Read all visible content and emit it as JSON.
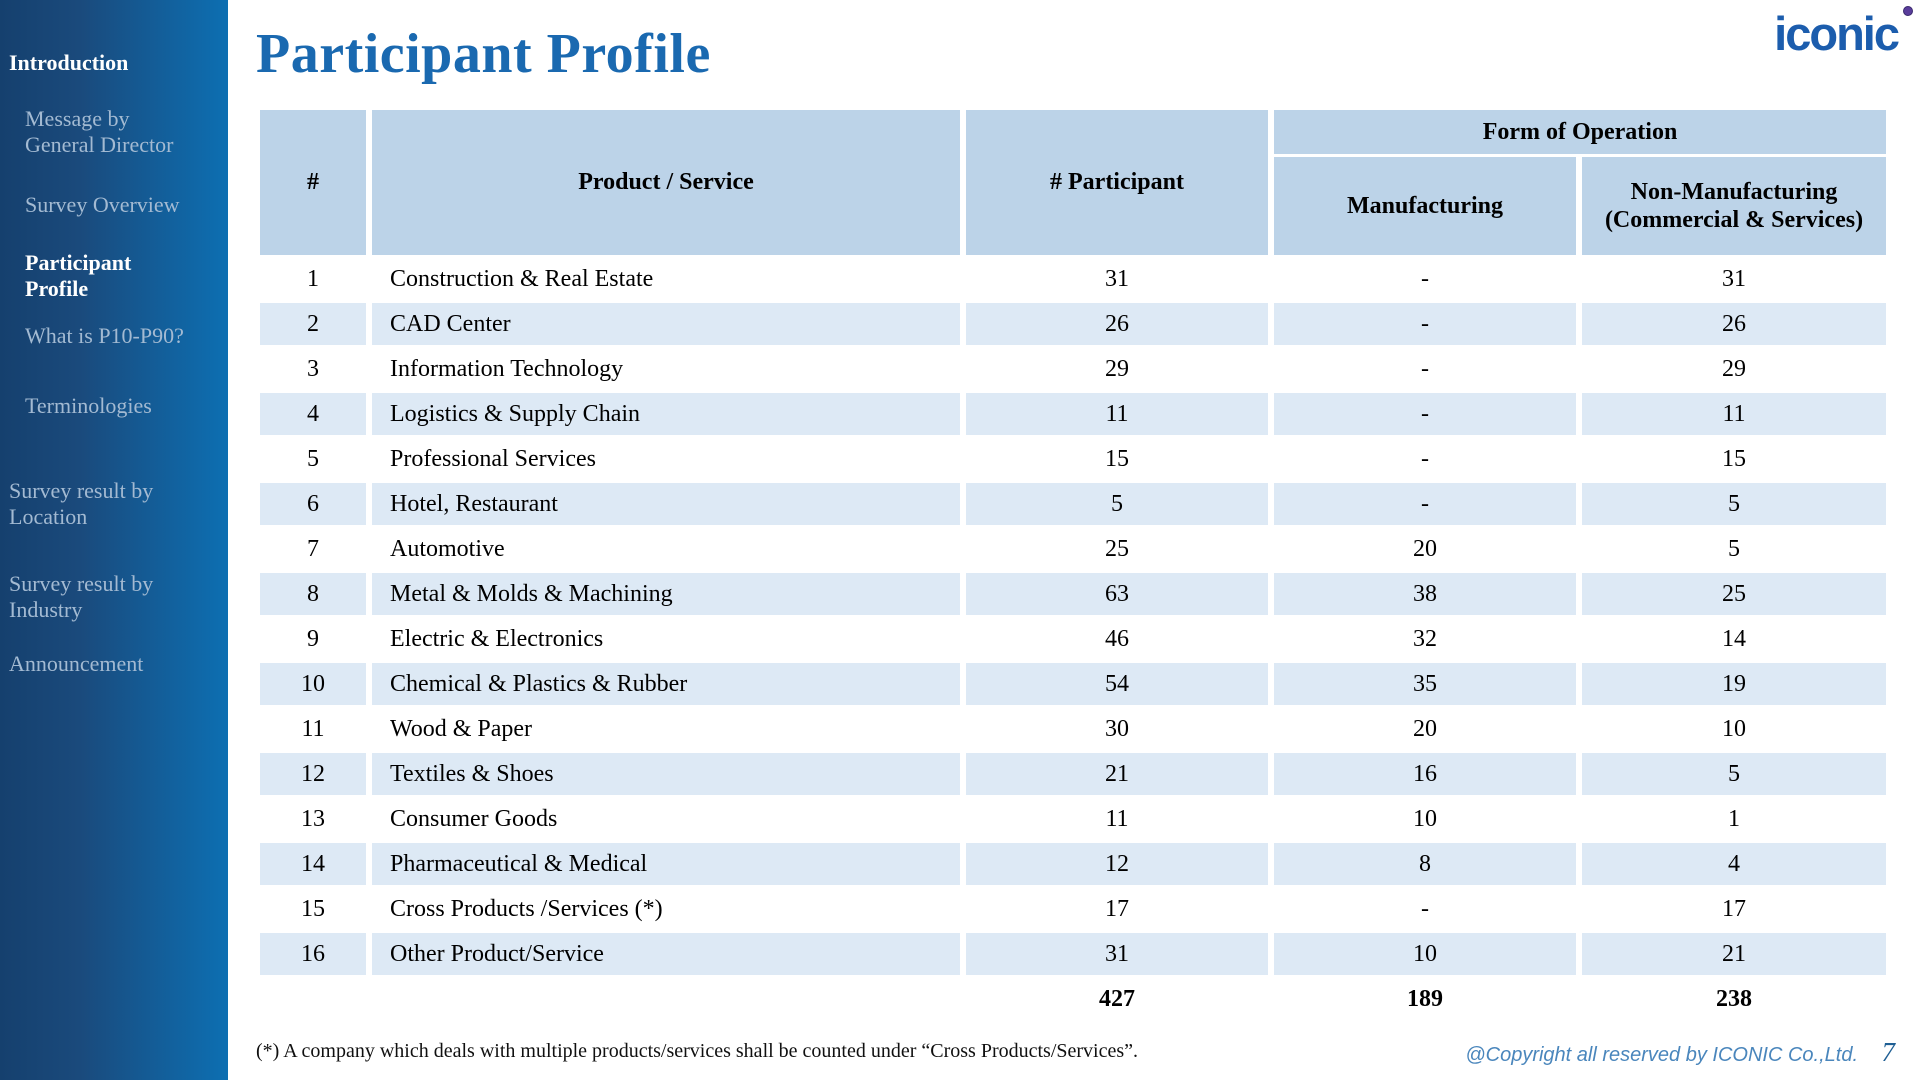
{
  "sidebar": {
    "items": [
      {
        "label": "Introduction",
        "level": 0,
        "active": true
      },
      {
        "label": "Message by General Director",
        "level": 1,
        "active": false
      },
      {
        "label": "Survey Overview",
        "level": 1,
        "active": false
      },
      {
        "label": "Participant Profile",
        "level": 1,
        "active": true
      },
      {
        "label": "What is P10-P90?",
        "level": 1,
        "active": false
      },
      {
        "label": "Terminologies",
        "level": 1,
        "active": false
      },
      {
        "label": "Survey result by Location",
        "level": 0,
        "active": false
      },
      {
        "label": "Survey result by Industry",
        "level": 0,
        "active": false
      },
      {
        "label": "Announcement",
        "level": 0,
        "active": false
      }
    ]
  },
  "header": {
    "title": "Participant Profile",
    "logo_text": "iconic",
    "logo_color": "#1c5dad",
    "logo_dot_color": "#5a3d9b",
    "title_color": "#1a69b0"
  },
  "table": {
    "columns": {
      "no": "#",
      "product_service": "Product / Service",
      "participants": "# Participant",
      "form_of_operation": "Form of Operation",
      "manufacturing": "Manufacturing",
      "non_manufacturing": "Non-Manufacturing (Commercial & Services)"
    },
    "header_bg": "#bcd3e8",
    "stripe_bg": "#dde9f5",
    "rows": [
      {
        "no": "1",
        "name": "Construction & Real Estate",
        "participants": "31",
        "manufacturing": "-",
        "non_manufacturing": "31"
      },
      {
        "no": "2",
        "name": "CAD Center",
        "participants": "26",
        "manufacturing": "-",
        "non_manufacturing": "26"
      },
      {
        "no": "3",
        "name": "Information Technology",
        "participants": "29",
        "manufacturing": "-",
        "non_manufacturing": "29"
      },
      {
        "no": "4",
        "name": "Logistics & Supply Chain",
        "participants": "11",
        "manufacturing": "-",
        "non_manufacturing": "11"
      },
      {
        "no": "5",
        "name": "Professional Services",
        "participants": "15",
        "manufacturing": "-",
        "non_manufacturing": "15"
      },
      {
        "no": "6",
        "name": "Hotel, Restaurant",
        "participants": "5",
        "manufacturing": "-",
        "non_manufacturing": "5"
      },
      {
        "no": "7",
        "name": "Automotive",
        "participants": "25",
        "manufacturing": "20",
        "non_manufacturing": "5"
      },
      {
        "no": "8",
        "name": "Metal & Molds & Machining",
        "participants": "63",
        "manufacturing": "38",
        "non_manufacturing": "25"
      },
      {
        "no": "9",
        "name": "Electric & Electronics",
        "participants": "46",
        "manufacturing": "32",
        "non_manufacturing": "14"
      },
      {
        "no": "10",
        "name": "Chemical & Plastics & Rubber",
        "participants": "54",
        "manufacturing": "35",
        "non_manufacturing": "19"
      },
      {
        "no": "11",
        "name": "Wood & Paper",
        "participants": "30",
        "manufacturing": "20",
        "non_manufacturing": "10"
      },
      {
        "no": "12",
        "name": "Textiles & Shoes",
        "participants": "21",
        "manufacturing": "16",
        "non_manufacturing": "5"
      },
      {
        "no": "13",
        "name": "Consumer Goods",
        "participants": "11",
        "manufacturing": "10",
        "non_manufacturing": "1"
      },
      {
        "no": "14",
        "name": "Pharmaceutical & Medical",
        "participants": "12",
        "manufacturing": "8",
        "non_manufacturing": "4"
      },
      {
        "no": "15",
        "name": "Cross Products /Services (*)",
        "participants": "17",
        "manufacturing": "-",
        "non_manufacturing": "17"
      },
      {
        "no": "16",
        "name": "Other Product/Service",
        "participants": "31",
        "manufacturing": "10",
        "non_manufacturing": "21"
      }
    ],
    "totals": {
      "participants": "427",
      "manufacturing": "189",
      "non_manufacturing": "238"
    }
  },
  "footnote": "(*) A company which deals with multiple products/services shall be counted under “Cross Products/Services”.",
  "footer": {
    "copyright": "@Copyright all reserved by ICONIC Co.,Ltd.",
    "page": "7"
  }
}
